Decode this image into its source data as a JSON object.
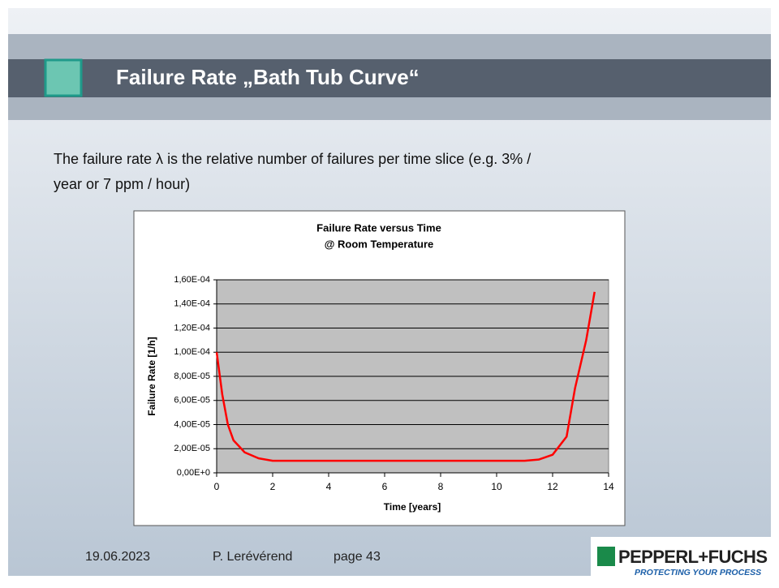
{
  "slide": {
    "title": "Failure Rate „Bath Tub Curve“",
    "body": [
      "The failure rate λ is the relative number of failures per time slice (e.g. 3% /",
      "year or 7 ppm / hour)"
    ],
    "footer": {
      "date": "19.06.2023",
      "author": "P. Lerévérend",
      "page": "page 43"
    },
    "logo": {
      "name": "PEPPERL+FUCHS",
      "slogan": "PROTECTING YOUR PROCESS"
    }
  },
  "chart_data": {
    "type": "line",
    "title": [
      "Failure Rate versus Time",
      "@ Room Temperature"
    ],
    "x_label": "Time [years]",
    "y_label": "Failure Rate [1/h]",
    "color": "#ff0000",
    "grid": true,
    "x": [
      0,
      0.2,
      0.4,
      0.6,
      0.8,
      1,
      1.5,
      2,
      3,
      4,
      5,
      6,
      7,
      8,
      9,
      10,
      11,
      11.5,
      12,
      12.5,
      12.8,
      13.2,
      13.5
    ],
    "values": [
      0.0001,
      6.5e-05,
      4e-05,
      2.7e-05,
      2.2e-05,
      1.7e-05,
      1.2e-05,
      1e-05,
      1e-05,
      1e-05,
      1e-05,
      1e-05,
      1e-05,
      1e-05,
      1e-05,
      1e-05,
      1e-05,
      1.1e-05,
      1.5e-05,
      3e-05,
      7e-05,
      0.00011,
      0.00015
    ],
    "xlim": [
      0,
      14
    ],
    "xticks": [
      0,
      2,
      4,
      6,
      8,
      10,
      12,
      14
    ],
    "ylim": [
      0,
      0.00016
    ],
    "yticks": [
      {
        "value": 0,
        "label": "0,00E+0"
      },
      {
        "value": 2e-05,
        "label": "2,00E-05"
      },
      {
        "value": 4e-05,
        "label": "4,00E-05"
      },
      {
        "value": 6e-05,
        "label": "6,00E-05"
      },
      {
        "value": 8e-05,
        "label": "8,00E-05"
      },
      {
        "value": 0.0001,
        "label": "1,00E-04"
      },
      {
        "value": 0.00012,
        "label": "1,20E-04"
      },
      {
        "value": 0.00014,
        "label": "1,40E-04"
      },
      {
        "value": 0.00016,
        "label": "1,60E-04"
      }
    ]
  }
}
